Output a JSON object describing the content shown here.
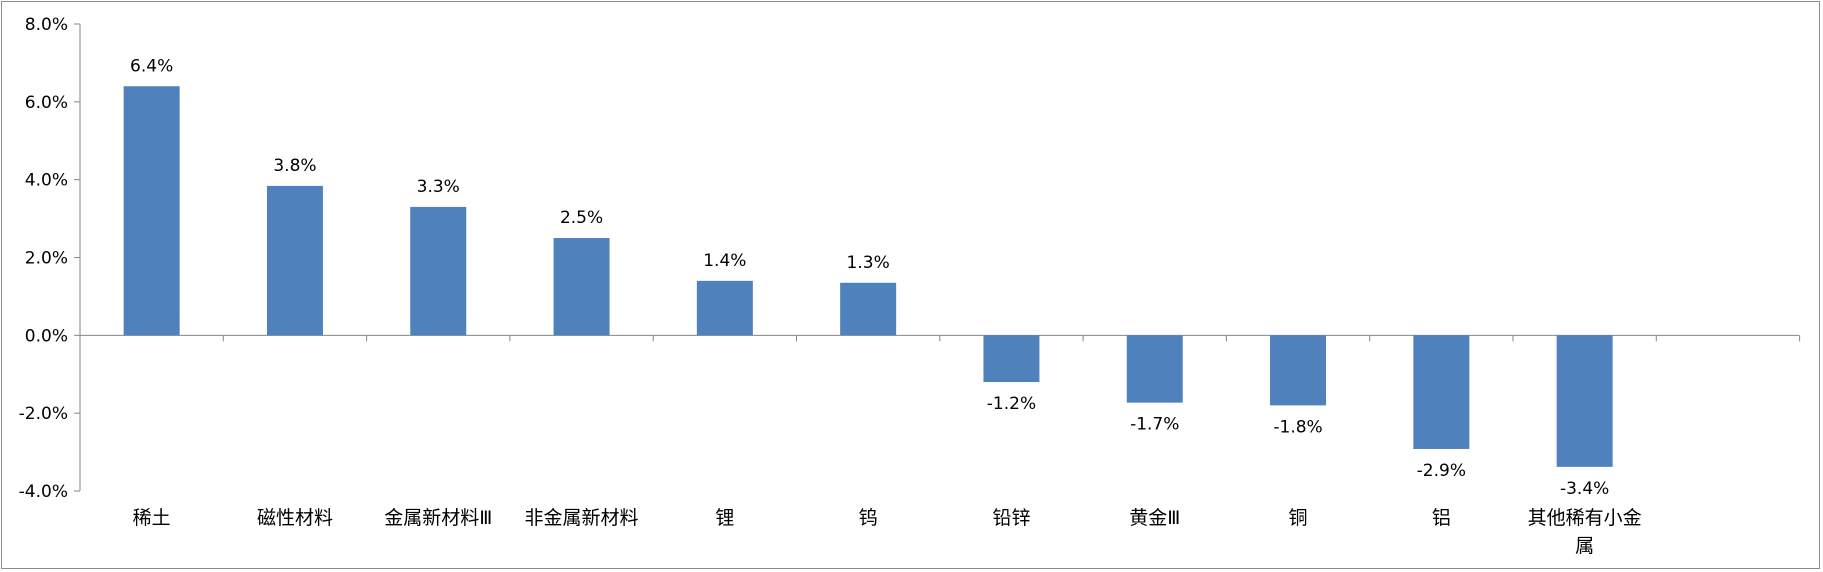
{
  "chart_data": {
    "type": "bar",
    "title": "",
    "xlabel": "",
    "ylabel": "",
    "categories": [
      "稀土",
      "磁性材料",
      "金属新材料Ⅲ",
      "非金属新材料",
      "锂",
      "钨",
      "铅锌",
      "黄金Ⅲ",
      "铜",
      "铝",
      "其他稀有小金属"
    ],
    "category_lines": [
      [
        "稀土"
      ],
      [
        "磁性材料"
      ],
      [
        "金属新材料Ⅲ"
      ],
      [
        "非金属新材料"
      ],
      [
        "锂"
      ],
      [
        "钨"
      ],
      [
        "铅锌"
      ],
      [
        "黄金Ⅲ"
      ],
      [
        "铜"
      ],
      [
        "铝"
      ],
      [
        "其他稀有小金",
        "属"
      ]
    ],
    "values": [
      6.4,
      3.84,
      3.3,
      2.5,
      1.4,
      1.35,
      -1.2,
      -1.73,
      -1.8,
      -2.92,
      -3.38
    ],
    "data_labels": [
      "6.4%",
      "3.8%",
      "3.3%",
      "2.5%",
      "1.4%",
      "1.3%",
      "-1.2%",
      "-1.7%",
      "-1.8%",
      "-2.9%",
      "-3.4%"
    ],
    "ylim": [
      -4,
      8
    ],
    "yticks": [
      8,
      6,
      4,
      2,
      0,
      -2,
      -4
    ],
    "ytick_labels": [
      "8.0%",
      "6.0%",
      "4.0%",
      "2.0%",
      "0.0%",
      "-2.0%",
      "-4.0%"
    ],
    "grid": false,
    "legend": "none",
    "colors": {
      "bar": "#4f81bd",
      "axis": "#868686"
    }
  }
}
